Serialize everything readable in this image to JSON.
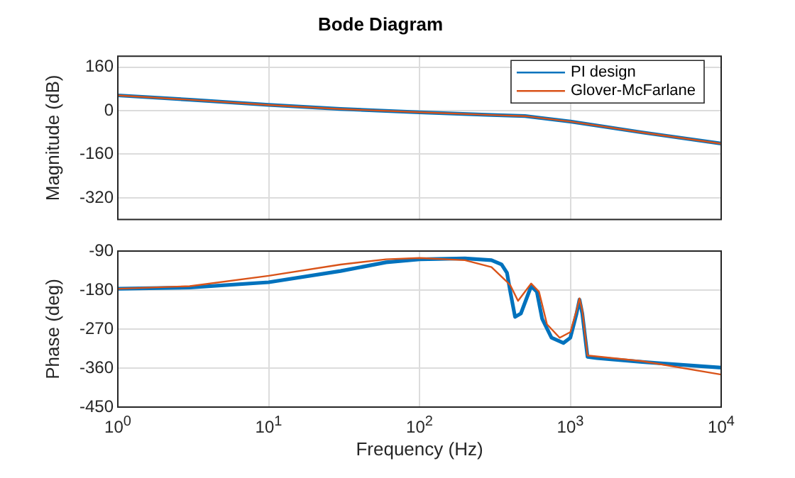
{
  "chart_data": [
    {
      "type": "line",
      "title": "Bode Diagram",
      "ylabel": "Magnitude (dB)",
      "log": "x",
      "grid": true,
      "legend": "top right",
      "tick_labels": "y",
      "marker": "none",
      "line_style": "solid",
      "xlim": [
        1,
        10000
      ],
      "xticks": [
        1,
        10,
        100,
        1000,
        10000
      ],
      "ylim": [
        -400,
        200
      ],
      "yticks": [
        -320,
        -160,
        0,
        160
      ],
      "x": [
        1,
        3,
        10,
        30,
        100,
        300,
        500,
        1000,
        3000,
        10000
      ],
      "series": [
        {
          "name": "PI design",
          "color": "#0072bd",
          "values": [
            56,
            40,
            21,
            6,
            -6,
            -16,
            -20,
            -40,
            -80,
            -121
          ]
        },
        {
          "name": "Glover-McFarlane",
          "color": "#d95319",
          "values": [
            56,
            40,
            21,
            6,
            -6,
            -16,
            -20,
            -40,
            -80,
            -121
          ]
        }
      ]
    },
    {
      "type": "line",
      "xlabel": "Frequency (Hz)",
      "ylabel": "Phase (deg)",
      "log": "x",
      "grid": true,
      "marker": "none",
      "line_style": "solid",
      "xlim": [
        1,
        10000
      ],
      "xticks": [
        {
          "value": 1,
          "label": "10$^{0}$"
        },
        {
          "value": 10,
          "label": "10$^{1}$"
        },
        {
          "value": 100,
          "label": "10$^{2}$"
        },
        {
          "value": 1000,
          "label": "10$^{3}$"
        },
        {
          "value": 10000,
          "label": "10$^{4}$"
        }
      ],
      "ylim": [
        -450,
        -90
      ],
      "yticks": [
        -450,
        -360,
        -270,
        -180,
        -90
      ],
      "series": [
        {
          "color": "#0072bd",
          "x": [
            1,
            3,
            10,
            30,
            60,
            100,
            200,
            300,
            350,
            380,
            400,
            430,
            470,
            550,
            600,
            650,
            750,
            900,
            1000,
            1100,
            1150,
            1200,
            1300,
            1500,
            3000,
            10000
          ],
          "values": [
            -177,
            -174,
            -162,
            -136,
            -116,
            -109,
            -107,
            -111,
            -121,
            -140,
            -184,
            -242,
            -234,
            -171,
            -184,
            -246,
            -290,
            -302,
            -290,
            -234,
            -202,
            -234,
            -334,
            -337,
            -346,
            -359
          ]
        },
        {
          "color": "#d95319",
          "x": [
            1,
            3,
            10,
            30,
            60,
            100,
            200,
            300,
            380,
            400,
            450,
            550,
            620,
            700,
            850,
            1000,
            1100,
            1150,
            1200,
            1300,
            3000,
            10000
          ],
          "values": [
            -177,
            -171,
            -147,
            -121,
            -109,
            -106,
            -111,
            -127,
            -161,
            -169,
            -205,
            -165,
            -184,
            -259,
            -290,
            -277,
            -227,
            -199,
            -227,
            -331,
            -344,
            -375
          ]
        }
      ]
    }
  ]
}
